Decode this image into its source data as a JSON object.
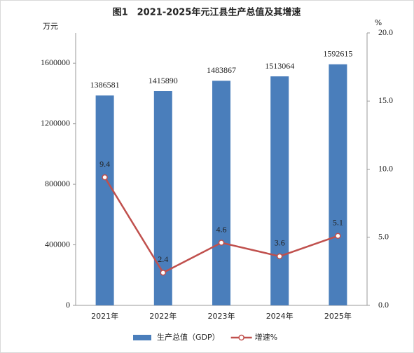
{
  "chart_data": {
    "type": "bar-line",
    "title": "图1　2021-2025年元江县生产总值及其增速",
    "y_unit": "万元",
    "y2_unit": "%",
    "categories": [
      "2021年",
      "2022年",
      "2023年",
      "2024年",
      "2025年"
    ],
    "series": [
      {
        "name": "生产总值（GDP）",
        "type": "bar",
        "color": "#4a7ebb",
        "values": [
          1386581,
          1415890,
          1483867,
          1513064,
          1592615
        ]
      },
      {
        "name": "增速%",
        "type": "line",
        "axis": "y2",
        "color": "#c0504d",
        "values": [
          9.4,
          2.4,
          4.6,
          3.6,
          5.1
        ]
      }
    ],
    "ylim": [
      0,
      1800000
    ],
    "yticks": [
      0,
      400000,
      800000,
      1200000,
      1600000
    ],
    "y2lim": [
      0,
      20
    ],
    "y2ticks": [
      {
        "value": 0,
        "label": "0.0"
      },
      {
        "value": 5,
        "label": "5.0"
      },
      {
        "value": 10,
        "label": "10.0"
      },
      {
        "value": 15,
        "label": "15.0"
      },
      {
        "value": 20,
        "label": "20.0"
      }
    ],
    "legend": "bottom"
  }
}
